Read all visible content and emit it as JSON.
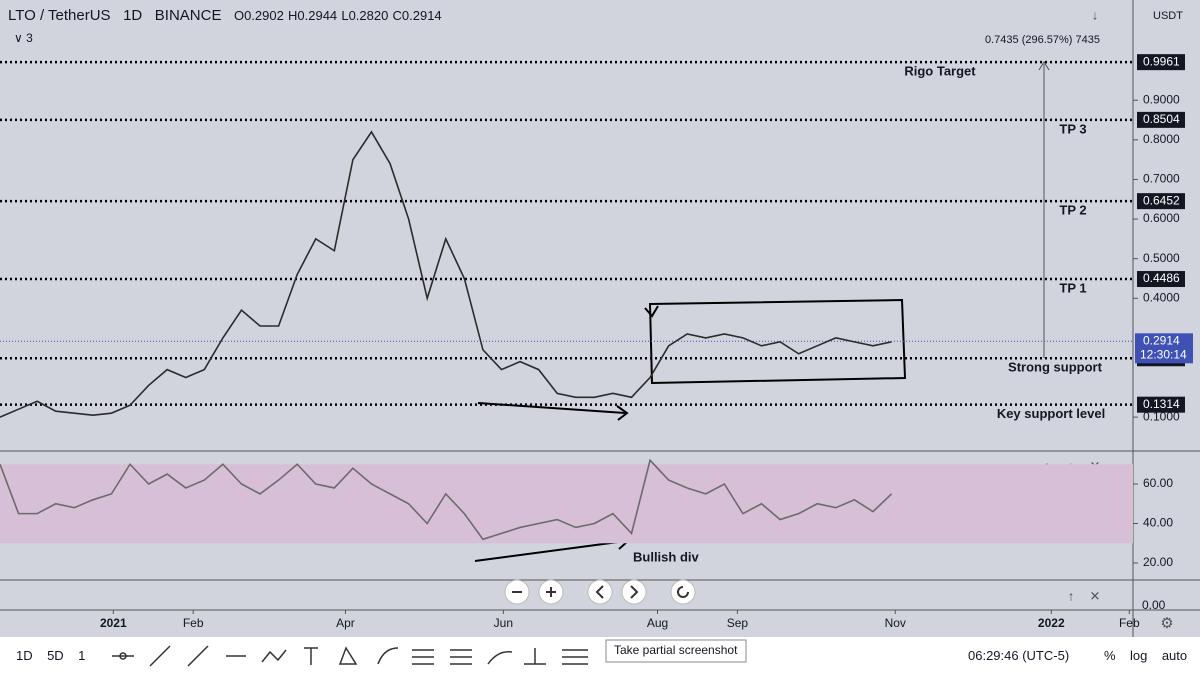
{
  "header": {
    "symbol": "LTO / TetherUS",
    "interval": "1D",
    "exchange": "BINANCE",
    "ohlc": [
      "O0.2902",
      "H0.2944",
      "L0.2820",
      "C0.2914"
    ],
    "indicator_count": "∨ 3",
    "measure": "0.7435 (296.57%) 7435",
    "currency": "USDT"
  },
  "chart_data": [
    {
      "type": "line",
      "color": "#2b2b2b",
      "x": [
        0,
        1,
        2,
        3,
        4,
        5,
        6,
        7,
        8,
        9,
        10,
        11,
        12,
        13,
        14,
        15,
        16,
        17,
        18,
        19,
        20,
        21,
        22,
        23,
        24,
        25,
        26,
        27,
        28,
        29,
        30,
        31,
        32,
        33,
        34,
        35,
        36,
        37,
        38,
        39,
        40,
        41,
        42,
        43,
        44,
        45,
        46,
        47,
        48
      ],
      "values": [
        0.1,
        0.12,
        0.14,
        0.115,
        0.11,
        0.105,
        0.11,
        0.13,
        0.18,
        0.22,
        0.2,
        0.22,
        0.3,
        0.37,
        0.33,
        0.33,
        0.46,
        0.55,
        0.52,
        0.75,
        0.82,
        0.74,
        0.6,
        0.4,
        0.55,
        0.45,
        0.27,
        0.22,
        0.24,
        0.22,
        0.16,
        0.15,
        0.15,
        0.16,
        0.15,
        0.2,
        0.28,
        0.31,
        0.3,
        0.31,
        0.3,
        0.28,
        0.29,
        0.26,
        0.28,
        0.3,
        0.29,
        0.28,
        0.29
      ],
      "xlim": [
        0,
        61
      ],
      "xticks": [
        {
          "value": 6.1,
          "label": "2021"
        },
        {
          "value": 10.4,
          "label": "Feb"
        },
        {
          "value": 18.6,
          "label": "Apr"
        },
        {
          "value": 27.1,
          "label": "Jun"
        },
        {
          "value": 35.4,
          "label": "Aug"
        },
        {
          "value": 39.7,
          "label": "Sep"
        },
        {
          "value": 48.2,
          "label": "Nov"
        },
        {
          "value": 56.6,
          "label": "2022"
        },
        {
          "value": 60.8,
          "label": "Feb"
        }
      ],
      "ylim": [
        0.017,
        1.153
      ],
      "yticks": [
        {
          "value": 0.1,
          "label": "0.1000"
        },
        {
          "value": 0.4,
          "label": "0.4000"
        },
        {
          "value": 0.5,
          "label": "0.5000"
        },
        {
          "value": 0.6,
          "label": "0.6000"
        },
        {
          "value": 0.7,
          "label": "0.7000"
        },
        {
          "value": 0.8,
          "label": "0.8000"
        },
        {
          "value": 0.9,
          "label": "0.9000"
        }
      ],
      "levels": [
        {
          "value": 0.9961,
          "label": "Rigo Target"
        },
        {
          "value": 0.8504,
          "label": "TP 3"
        },
        {
          "value": 0.6452,
          "label": "TP 2"
        },
        {
          "value": 0.4486,
          "label": "TP 1"
        },
        {
          "value": 0.2486,
          "label": "Strong support"
        },
        {
          "value": 0.1314,
          "label": "Key support level"
        }
      ],
      "last_price": 0.2914,
      "countdown": "12:30:14"
    },
    {
      "type": "line",
      "color": "#6b6b6b",
      "values": [
        70,
        45,
        45,
        50,
        48,
        52,
        55,
        70,
        60,
        65,
        58,
        62,
        70,
        60,
        55,
        62,
        70,
        60,
        58,
        68,
        60,
        55,
        50,
        40,
        55,
        45,
        32,
        35,
        38,
        40,
        42,
        38,
        40,
        45,
        35,
        72,
        62,
        58,
        55,
        60,
        45,
        50,
        42,
        45,
        50,
        48,
        52,
        46,
        55
      ],
      "ylim": [
        11.4,
        76.2
      ],
      "band": [
        30,
        70
      ],
      "yticks": [
        {
          "value": 20,
          "label": "20.00"
        },
        {
          "value": 40,
          "label": "40.00"
        },
        {
          "value": 60,
          "label": "60.00"
        }
      ],
      "annotation": "Bullish div"
    }
  ],
  "ui": {
    "third_pane_tick": "0.00",
    "toolbar_left": [
      "1D",
      "5D",
      "1"
    ],
    "tooltip": "Take partial screenshot",
    "clock": "06:29:46 (UTC-5)",
    "toolbar_right": [
      "%",
      "log",
      "auto"
    ]
  }
}
